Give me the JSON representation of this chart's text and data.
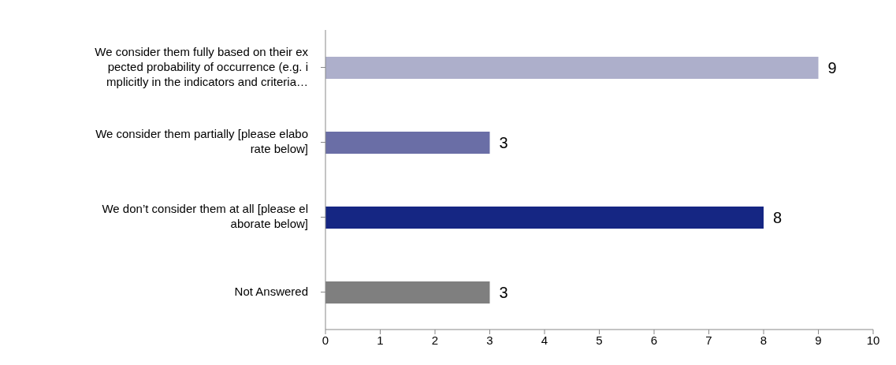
{
  "chart_data": {
    "type": "bar",
    "orientation": "horizontal",
    "categories": [
      "We consider them fully based on their ex\npected probability of occurrence (e.g. i\nmplicitly in the indicators and criteria…",
      "We consider them partially [please elabo\nrate below]",
      "We don’t consider them at all [please el\naborate below]",
      "Not Answered"
    ],
    "values": [
      9,
      3,
      8,
      3
    ],
    "colors": [
      "#adafcb",
      "#6a6ea6",
      "#152683",
      "#7f7f7f"
    ],
    "xlim": [
      0,
      10
    ],
    "xticks": [
      0,
      1,
      2,
      3,
      4,
      5,
      6,
      7,
      8,
      9,
      10
    ],
    "grid": false,
    "data_labels": true
  }
}
